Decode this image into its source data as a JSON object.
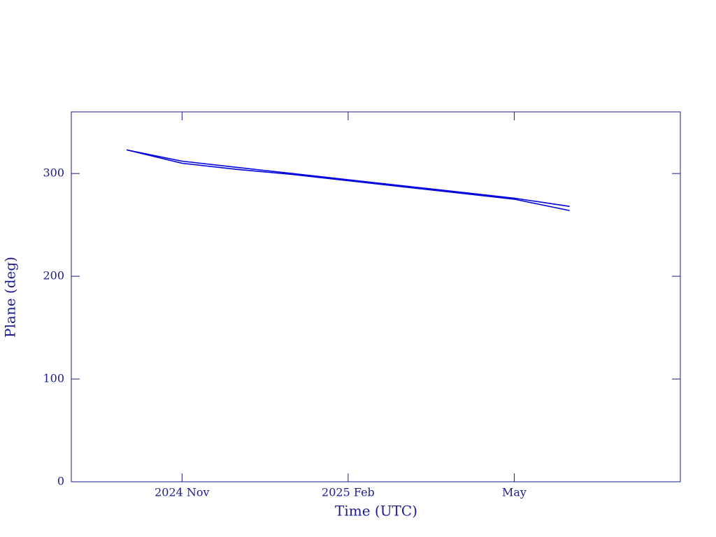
{
  "chart_data": {
    "type": "line",
    "xlabel": "Time (UTC)",
    "ylabel": "Plane (deg)",
    "x": [
      "2024-10",
      "2024-11",
      "2024-12",
      "2025-01",
      "2025-02",
      "2025-03",
      "2025-04",
      "2025-05",
      "2025-06"
    ],
    "series": [
      {
        "color": "#0000dd",
        "values": [
          323,
          312,
          306,
          300,
          294,
          288,
          282,
          276,
          268
        ]
      },
      {
        "color": "#0000dd",
        "values": [
          323,
          310,
          304,
          299,
          293,
          287,
          281,
          275,
          264
        ]
      }
    ],
    "xlim": [
      "2024-09",
      "2025-08"
    ],
    "xticks": [
      {
        "value": "2024-11",
        "label": "2024 Nov"
      },
      {
        "value": "2025-02",
        "label": "2025 Feb"
      },
      {
        "value": "2025-05",
        "label": "May"
      }
    ],
    "ylim": [
      0,
      360
    ],
    "yticks": [
      0,
      100,
      200,
      300
    ],
    "axis_color": "#1a1a8c",
    "grid": false
  }
}
